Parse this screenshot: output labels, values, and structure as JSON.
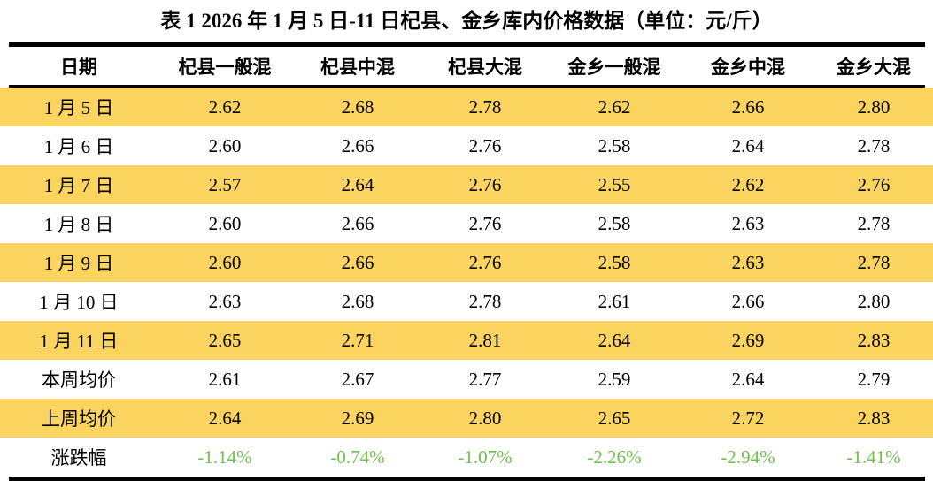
{
  "colors": {
    "row_highlight": "#fbd460",
    "negative_change_text": "#6fc14f",
    "rule": "#000000"
  },
  "chart_data": {
    "type": "table",
    "title": "表 1 2026 年 1 月 5 日-11 日杞县、金乡库内价格数据（单位：元/斤）",
    "unit": "元/斤",
    "columns": [
      "日期",
      "杞县一般混",
      "杞县中混",
      "杞县大混",
      "金乡一般混",
      "金乡中混",
      "金乡大混"
    ],
    "rows": [
      {
        "label": "1 月 5 日",
        "highlight": true,
        "values": [
          "2.62",
          "2.68",
          "2.78",
          "2.62",
          "2.66",
          "2.80"
        ]
      },
      {
        "label": "1 月 6 日",
        "highlight": false,
        "values": [
          "2.60",
          "2.66",
          "2.76",
          "2.58",
          "2.64",
          "2.78"
        ]
      },
      {
        "label": "1 月 7 日",
        "highlight": true,
        "values": [
          "2.57",
          "2.64",
          "2.76",
          "2.55",
          "2.62",
          "2.76"
        ]
      },
      {
        "label": "1 月 8 日",
        "highlight": false,
        "values": [
          "2.60",
          "2.66",
          "2.76",
          "2.58",
          "2.63",
          "2.78"
        ]
      },
      {
        "label": "1 月 9 日",
        "highlight": true,
        "values": [
          "2.60",
          "2.66",
          "2.76",
          "2.58",
          "2.63",
          "2.78"
        ]
      },
      {
        "label": "1 月 10 日",
        "highlight": false,
        "values": [
          "2.63",
          "2.68",
          "2.78",
          "2.61",
          "2.66",
          "2.80"
        ]
      },
      {
        "label": "1 月 11 日",
        "highlight": true,
        "values": [
          "2.65",
          "2.71",
          "2.81",
          "2.64",
          "2.69",
          "2.83"
        ]
      },
      {
        "label": "本周均价",
        "highlight": false,
        "values": [
          "2.61",
          "2.67",
          "2.77",
          "2.59",
          "2.64",
          "2.79"
        ]
      },
      {
        "label": "上周均价",
        "highlight": true,
        "values": [
          "2.64",
          "2.69",
          "2.80",
          "2.65",
          "2.72",
          "2.83"
        ]
      },
      {
        "label": "涨跌幅",
        "highlight": false,
        "values": [
          "-1.14%",
          "-0.74%",
          "-1.07%",
          "-2.26%",
          "-2.94%",
          "-1.41%"
        ]
      }
    ]
  }
}
